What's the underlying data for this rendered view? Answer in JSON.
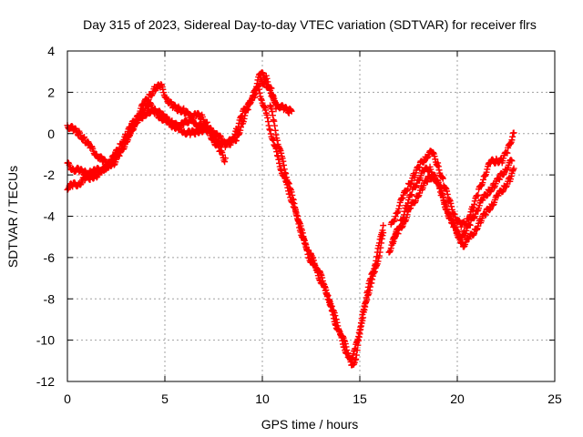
{
  "chart_data": {
    "type": "scatter",
    "title": "Day 315 of 2023, Sidereal Day-to-day VTEC variation (SDTVAR) for receiver flrs",
    "xlabel": "GPS time / hours",
    "ylabel": "SDTVAR / TECUs",
    "xlim": [
      0,
      25
    ],
    "ylim": [
      -12,
      4
    ],
    "xticks": [
      "0",
      "5",
      "10",
      "15",
      "20",
      "25"
    ],
    "yticks": [
      "-12",
      "-10",
      "-8",
      "-6",
      "-4",
      "-2",
      "0",
      "2",
      "4"
    ],
    "grid": true,
    "marker": "plus",
    "color": "#ff0000",
    "series": [
      {
        "x": [
          0,
          0.3,
          0.6,
          0.9,
          1.2,
          1.5,
          1.8,
          2.1,
          2.4,
          2.7,
          3.0,
          3.3,
          3.6,
          3.9,
          4.2,
          4.5,
          4.8,
          5.1,
          5.4,
          5.7,
          6.0,
          6.3,
          6.6,
          6.9,
          7.2,
          7.5,
          7.8,
          8.1
        ],
        "y": [
          0.4,
          0.2,
          0,
          -0.3,
          -0.7,
          -1.0,
          -1.3,
          -1.5,
          -1.4,
          -1.0,
          -0.4,
          0.2,
          0.7,
          1.1,
          1.4,
          1.2,
          0.9,
          0.7,
          0.5,
          0.3,
          0.1,
          0,
          0.1,
          0.2,
          0.1,
          -0.3,
          -0.8,
          -1.3
        ]
      },
      {
        "x": [
          0,
          0.3,
          0.6,
          0.9,
          1.2,
          1.5,
          1.8,
          2.1,
          2.4,
          2.7,
          3.0,
          3.3,
          3.6,
          3.9,
          4.2,
          4.5,
          4.8,
          5.1,
          5.4,
          5.7,
          6.0,
          6.3,
          6.6,
          6.9,
          7.2,
          7.5,
          7.8,
          8.1,
          8.4,
          8.7,
          9.0,
          9.3,
          9.6,
          9.9,
          10.2,
          10.5,
          10.8,
          11.1,
          11.4,
          11.5
        ],
        "y": [
          -1.5,
          -1.7,
          -1.8,
          -1.9,
          -1.9,
          -1.8,
          -1.7,
          -1.6,
          -1.2,
          -0.8,
          -0.3,
          0.2,
          0.6,
          0.9,
          1.1,
          1.0,
          0.8,
          0.6,
          0.4,
          0.3,
          0.5,
          0.7,
          0.9,
          0.8,
          0.4,
          -0.1,
          -0.4,
          -0.6,
          -0.4,
          0.2,
          1.0,
          1.5,
          1.8,
          2.6,
          2.4,
          1.8,
          1.4,
          1.2,
          1.1,
          1.2
        ]
      },
      {
        "x": [
          0,
          0.3,
          0.6,
          0.9,
          1.2,
          1.5,
          1.8,
          2.1,
          2.4,
          2.7,
          3.0,
          3.3,
          3.6,
          3.9,
          4.2,
          4.5,
          4.8,
          5.1,
          5.4,
          5.7,
          6.0,
          6.3,
          6.6,
          6.9,
          7.2,
          7.5,
          7.8,
          8.1,
          8.4,
          8.7,
          9.0,
          9.3,
          9.6,
          9.9,
          10.2,
          10.5,
          10.7
        ],
        "y": [
          -2.6,
          -2.5,
          -2.4,
          -2.2,
          -2.1,
          -2.0,
          -1.8,
          -1.5,
          -1.1,
          -0.6,
          -0.1,
          0.4,
          0.9,
          1.4,
          1.8,
          2.2,
          2.3,
          1.7,
          1.3,
          1.2,
          1.1,
          0.8,
          0.5,
          0.3,
          0.2,
          0.0,
          -0.2,
          -0.4,
          -0.4,
          -0.2,
          0.6,
          1.3,
          2.1,
          2.9,
          2.7,
          2.0,
          1.1
        ]
      },
      {
        "x": [
          9.8,
          10.0,
          10.2,
          10.4,
          10.6,
          10.8,
          11.0,
          11.2,
          11.4,
          11.6,
          11.8,
          12.0,
          12.2,
          12.4,
          12.6,
          12.8,
          13.0,
          13.2,
          13.4,
          13.6,
          13.8,
          14.0,
          14.2,
          14.4,
          14.6,
          14.8,
          15.0,
          15.2,
          15.4,
          15.6,
          15.8,
          16.0,
          16.2
        ],
        "y": [
          2.2,
          1.6,
          0.9,
          0.2,
          -0.5,
          -1.2,
          -1.8,
          -2.4,
          -2.9,
          -3.5,
          -4.1,
          -4.8,
          -5.4,
          -6.0,
          -6.3,
          -6.7,
          -7.1,
          -7.5,
          -8.0,
          -8.5,
          -9.1,
          -9.6,
          -10.1,
          -10.6,
          -11.0,
          -10.3,
          -9.4,
          -8.6,
          -7.8,
          -7.2,
          -6.6,
          -5.8,
          -4.9
        ]
      },
      {
        "x": [
          10.4,
          10.6,
          10.8,
          11.0,
          11.2,
          11.4,
          11.6,
          11.8,
          12.0,
          12.2,
          12.4,
          12.6,
          12.8,
          13.0,
          13.2,
          13.4,
          13.6,
          13.8,
          14.0,
          14.2,
          14.4,
          14.6,
          14.8,
          15.0,
          15.2,
          15.4,
          15.6,
          15.8,
          16.0,
          16.2
        ],
        "y": [
          1.4,
          0.5,
          -0.4,
          -1.2,
          -1.9,
          -2.6,
          -3.3,
          -4.0,
          -4.7,
          -5.3,
          -5.8,
          -6.1,
          -6.5,
          -6.9,
          -7.4,
          -8.0,
          -8.7,
          -9.3,
          -9.8,
          -10.3,
          -10.8,
          -11.3,
          -10.8,
          -9.8,
          -8.6,
          -7.6,
          -6.9,
          -6.2,
          -5.4,
          -4.4
        ]
      },
      {
        "x": [
          16.5,
          16.8,
          17.1,
          17.4,
          17.7,
          18.0,
          18.3,
          18.6,
          18.9,
          19.2,
          19.5,
          19.8,
          20.1,
          20.4,
          20.7,
          21.0,
          21.3,
          21.6,
          21.9,
          22.2,
          22.5,
          22.8
        ],
        "y": [
          -5.7,
          -5.0,
          -4.3,
          -3.5,
          -2.8,
          -2.2,
          -1.8,
          -1.7,
          -2.2,
          -3.0,
          -3.8,
          -4.5,
          -5.0,
          -4.8,
          -4.3,
          -3.7,
          -3.2,
          -2.8,
          -2.5,
          -2.1,
          -1.7,
          -1.3
        ]
      },
      {
        "x": [
          16.6,
          16.9,
          17.2,
          17.5,
          17.8,
          18.1,
          18.4,
          18.7,
          19.0,
          19.3,
          19.6,
          19.9,
          20.2,
          20.5,
          20.8,
          21.1,
          21.4,
          21.7,
          22.0,
          22.3,
          22.6,
          22.9
        ],
        "y": [
          -4.5,
          -3.8,
          -3.1,
          -2.5,
          -2.0,
          -1.5,
          -1.1,
          -0.9,
          -1.5,
          -2.4,
          -3.3,
          -4.0,
          -4.5,
          -4.2,
          -3.6,
          -2.8,
          -2.0,
          -1.4,
          -1.3,
          -1.3,
          -0.8,
          0.1
        ]
      },
      {
        "x": [
          16.7,
          17.0,
          17.3,
          17.6,
          17.9,
          18.2,
          18.5,
          18.8,
          19.1,
          19.4,
          19.7,
          20.0,
          20.3,
          20.6,
          20.9,
          21.2,
          21.5,
          21.8,
          22.1,
          22.4,
          22.7,
          22.9
        ],
        "y": [
          -5.2,
          -4.7,
          -4.2,
          -3.6,
          -3.1,
          -2.6,
          -2.2,
          -2.0,
          -2.6,
          -3.4,
          -4.2,
          -4.8,
          -5.4,
          -5.1,
          -4.7,
          -4.2,
          -3.8,
          -3.4,
          -3.0,
          -2.6,
          -2.2,
          -1.8
        ]
      }
    ]
  }
}
